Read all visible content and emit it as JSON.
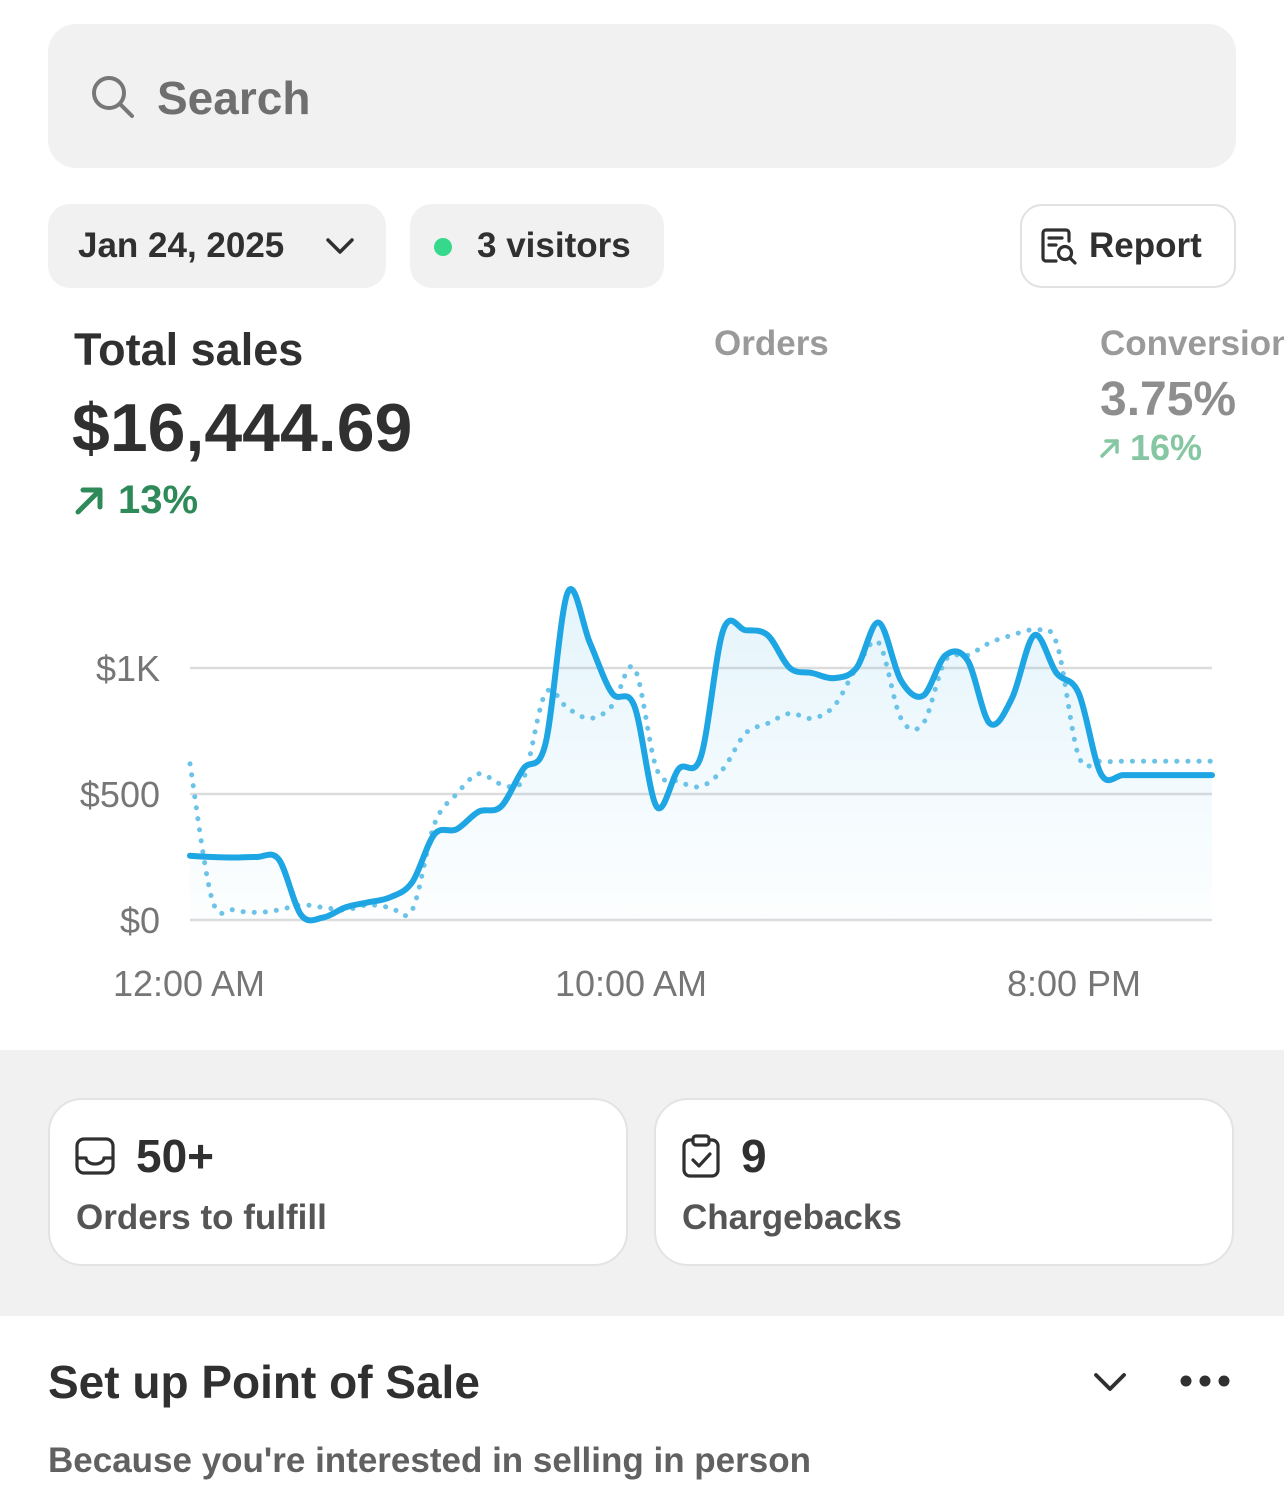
{
  "search": {
    "placeholder": "Search",
    "icon": "search-icon"
  },
  "filters": {
    "date": "Jan 24, 2025",
    "visitors": "3 visitors",
    "live_color": "#36d98b",
    "report_label": "Report"
  },
  "metrics": {
    "total_sales": {
      "title": "Total sales",
      "value": "$16,444.69",
      "change": "13%",
      "change_color": "#2f8a5a"
    },
    "orders": {
      "title": "Orders"
    },
    "conversion": {
      "title": "Conversion",
      "value": "3.75%",
      "change": "16%",
      "change_color": "#86c7a3"
    }
  },
  "chart_data": {
    "type": "line",
    "x_ticks": [
      "12:00 AM",
      "10:00 AM",
      "8:00 PM"
    ],
    "y_ticks": [
      "$0",
      "$500",
      "$1K"
    ],
    "y_tick_values": [
      0,
      500,
      1000
    ],
    "ylim": [
      0,
      1400
    ],
    "grid": true,
    "line_color": "#1ea5e3",
    "compare_color": "#6cc3e8",
    "series": [
      {
        "style": "solid",
        "x": [
          0,
          0.5,
          1.0,
          1.5,
          2.0,
          2.5,
          3.0,
          3.5,
          4.0,
          4.5,
          5.0,
          5.5,
          6.0,
          6.5,
          7.0,
          7.5,
          8.0,
          8.5,
          9.0,
          9.5,
          10.0,
          10.5,
          11.0,
          11.5,
          12.0,
          12.5,
          13.0,
          13.5,
          14.0,
          14.5,
          15.0,
          15.5,
          16.0,
          16.5,
          17.0,
          17.5,
          18.0,
          18.5,
          19.0,
          19.5,
          20.0,
          20.5,
          21.0,
          21.5,
          22.0,
          22.5,
          23.0
        ],
        "values": [
          255,
          250,
          248,
          250,
          240,
          20,
          10,
          50,
          70,
          90,
          150,
          340,
          360,
          430,
          450,
          600,
          700,
          1300,
          1100,
          900,
          850,
          450,
          600,
          650,
          1150,
          1150,
          1130,
          1000,
          980,
          960,
          1000,
          1180,
          950,
          890,
          1050,
          1030,
          780,
          880,
          1130,
          980,
          900,
          580,
          575,
          575,
          575,
          575,
          575
        ]
      },
      {
        "style": "dotted",
        "x": [
          0,
          0.5,
          1.0,
          1.5,
          2.0,
          2.5,
          3.0,
          3.5,
          4.0,
          4.5,
          5.0,
          5.5,
          6.0,
          6.5,
          7.0,
          7.5,
          8.0,
          8.5,
          9.0,
          9.5,
          10.0,
          10.5,
          11.0,
          11.5,
          12.0,
          12.5,
          13.0,
          13.5,
          14.0,
          14.5,
          15.0,
          15.5,
          16.0,
          16.5,
          17.0,
          17.5,
          18.0,
          18.5,
          19.0,
          19.5,
          20.0,
          20.5,
          21.0,
          21.5,
          22.0,
          22.5,
          23.0
        ],
        "values": [
          620,
          80,
          40,
          30,
          40,
          60,
          50,
          40,
          60,
          50,
          40,
          380,
          500,
          580,
          540,
          560,
          900,
          840,
          800,
          850,
          1000,
          600,
          550,
          530,
          600,
          740,
          780,
          820,
          800,
          850,
          1000,
          1100,
          800,
          780,
          1030,
          1050,
          1100,
          1130,
          1150,
          1100,
          650,
          630,
          630,
          630,
          630,
          630,
          630
        ]
      }
    ]
  },
  "cards": [
    {
      "icon": "inbox-icon",
      "value": "50+",
      "label": "Orders to fulfill"
    },
    {
      "icon": "clipboard-check-icon",
      "value": "9",
      "label": "Chargebacks"
    }
  ],
  "setup": {
    "title": "Set up Point of Sale",
    "subtitle": "Because you're interested in selling in person"
  }
}
